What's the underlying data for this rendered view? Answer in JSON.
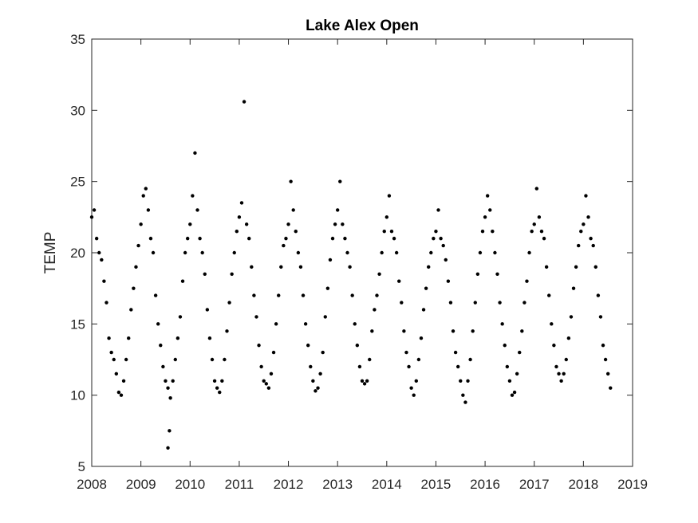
{
  "chart_data": {
    "type": "scatter",
    "title": "Lake Alex Open",
    "y_label": "TEMP",
    "color": "#000000",
    "xlim": [
      2008,
      2019
    ],
    "xticks": [
      2008,
      2009,
      2010,
      2011,
      2012,
      2013,
      2014,
      2015,
      2016,
      2017,
      2018,
      2019
    ],
    "ylim": [
      5,
      35
    ],
    "yticks": [
      5,
      10,
      15,
      20,
      25,
      30,
      35
    ],
    "grid": false,
    "x": [
      2008.0,
      2008.05,
      2008.1,
      2008.15,
      2008.2,
      2008.25,
      2008.3,
      2008.35,
      2008.4,
      2008.45,
      2008.5,
      2008.55,
      2008.6,
      2008.65,
      2008.7,
      2008.75,
      2008.8,
      2008.85,
      2008.9,
      2008.95,
      2009.0,
      2009.05,
      2009.1,
      2009.15,
      2009.2,
      2009.25,
      2009.3,
      2009.35,
      2009.4,
      2009.45,
      2009.5,
      2009.55,
      2009.6,
      2009.65,
      2009.7,
      2009.75,
      2009.8,
      2009.85,
      2009.9,
      2009.95,
      2010.0,
      2010.05,
      2010.1,
      2010.15,
      2010.2,
      2010.25,
      2010.3,
      2010.35,
      2010.4,
      2010.45,
      2010.5,
      2010.55,
      2010.6,
      2010.65,
      2010.7,
      2010.75,
      2010.8,
      2010.85,
      2010.9,
      2010.95,
      2011.0,
      2011.05,
      2011.1,
      2011.15,
      2011.2,
      2011.25,
      2011.3,
      2011.35,
      2011.4,
      2011.45,
      2011.5,
      2011.55,
      2011.6,
      2011.65,
      2011.7,
      2011.75,
      2011.8,
      2011.85,
      2011.9,
      2011.95,
      2012.0,
      2012.05,
      2012.1,
      2012.15,
      2012.2,
      2012.25,
      2012.3,
      2012.35,
      2012.4,
      2012.45,
      2012.5,
      2012.55,
      2012.6,
      2012.65,
      2012.7,
      2012.75,
      2012.8,
      2012.85,
      2012.9,
      2012.95,
      2013.0,
      2013.05,
      2013.1,
      2013.15,
      2013.2,
      2013.25,
      2013.3,
      2013.35,
      2013.4,
      2013.45,
      2013.5,
      2013.55,
      2013.6,
      2013.65,
      2013.7,
      2013.75,
      2013.8,
      2013.85,
      2013.9,
      2013.95,
      2014.0,
      2014.05,
      2014.1,
      2014.15,
      2014.2,
      2014.25,
      2014.3,
      2014.35,
      2014.4,
      2014.45,
      2014.5,
      2014.55,
      2014.6,
      2014.65,
      2014.7,
      2014.75,
      2014.8,
      2014.85,
      2014.9,
      2014.95,
      2015.0,
      2015.05,
      2015.1,
      2015.15,
      2015.2,
      2015.25,
      2015.3,
      2015.35,
      2015.4,
      2015.45,
      2015.5,
      2015.55,
      2015.6,
      2015.65,
      2015.7,
      2015.75,
      2015.8,
      2015.85,
      2015.9,
      2015.95,
      2016.0,
      2016.05,
      2016.1,
      2016.15,
      2016.2,
      2016.25,
      2016.3,
      2016.35,
      2016.4,
      2016.45,
      2016.5,
      2016.55,
      2016.6,
      2016.65,
      2016.7,
      2016.75,
      2016.8,
      2016.85,
      2016.9,
      2016.95,
      2017.0,
      2017.05,
      2017.1,
      2017.15,
      2017.2,
      2017.25,
      2017.3,
      2017.35,
      2017.4,
      2017.45,
      2017.5,
      2017.55,
      2017.6,
      2017.65,
      2017.7,
      2017.75,
      2017.8,
      2017.85,
      2017.9,
      2017.95,
      2018.0,
      2018.05,
      2018.1,
      2018.15,
      2018.2,
      2018.25,
      2018.3,
      2018.35,
      2018.4,
      2018.45,
      2018.5,
      2018.55,
      2009.55,
      2009.58
    ],
    "values": [
      22.5,
      23,
      21,
      20,
      19.5,
      18,
      16.5,
      14,
      13,
      12.5,
      11.5,
      10.2,
      10,
      11,
      12.5,
      14,
      16,
      17.5,
      19,
      20.5,
      22,
      24,
      24.5,
      23,
      21,
      20,
      17,
      15,
      13.5,
      12,
      11,
      10.5,
      9.8,
      11,
      12.5,
      14,
      15.5,
      18,
      20,
      21,
      22,
      24,
      27,
      23,
      21,
      20,
      18.5,
      16,
      14,
      12.5,
      11,
      10.5,
      10.2,
      11,
      12.5,
      14.5,
      16.5,
      18.5,
      20,
      21.5,
      22.5,
      23.5,
      30.6,
      22,
      21,
      19,
      17,
      15.5,
      13.5,
      12,
      11,
      10.8,
      10.5,
      11.5,
      13,
      15,
      17,
      19,
      20.5,
      21,
      22,
      25,
      23,
      21.5,
      20,
      19,
      17,
      15,
      13.5,
      12,
      11,
      10.3,
      10.5,
      11.5,
      13,
      15.5,
      17.5,
      19.5,
      21,
      22,
      23,
      25,
      22,
      21,
      20,
      19,
      17,
      15,
      13.5,
      12,
      11,
      10.8,
      11,
      12.5,
      14.5,
      16,
      17,
      18.5,
      20,
      21.5,
      22.5,
      24,
      21.5,
      21,
      20,
      18,
      16.5,
      14.5,
      13,
      12,
      10.5,
      10,
      11,
      12.5,
      14,
      16,
      17.5,
      19,
      20,
      21,
      21.5,
      23,
      21,
      20.5,
      19.5,
      18,
      16.5,
      14.5,
      13,
      12,
      11,
      10,
      9.5,
      11,
      12.5,
      14.5,
      16.5,
      18.5,
      20,
      21.5,
      22.5,
      24,
      23,
      21.5,
      20,
      18.5,
      16.5,
      15,
      13.5,
      12,
      11,
      10,
      10.2,
      11.5,
      13,
      14.5,
      16.5,
      18,
      20,
      21.5,
      22,
      24.5,
      22.5,
      21.5,
      21,
      19,
      17,
      15,
      13.5,
      12,
      11.5,
      11,
      11.5,
      12.5,
      14,
      15.5,
      17.5,
      19,
      20.5,
      21.5,
      22,
      24,
      22.5,
      21,
      20.5,
      19,
      17,
      15.5,
      13.5,
      12.5,
      11.5,
      10.5,
      6.3,
      7.5
    ]
  }
}
